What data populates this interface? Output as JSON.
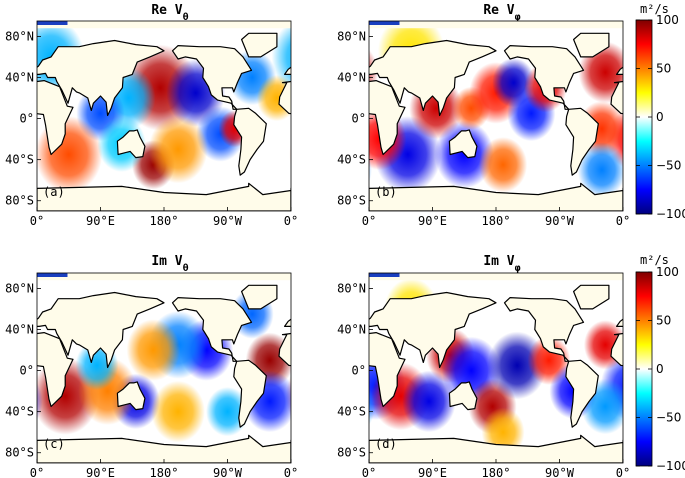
{
  "chart_data": [
    {
      "type": "heatmap",
      "panel": "a",
      "title_main": "Re V",
      "title_sub": "θ",
      "label": "(a)",
      "xticks": [
        "0°",
        "90°E",
        "180°",
        "90°W",
        "0°"
      ],
      "yticks": [
        "80°N",
        "40°N",
        "0°",
        "40°S",
        "80°S"
      ],
      "blobs": [
        {
          "lon": 175,
          "lat": 30,
          "v": 90,
          "r": 28
        },
        {
          "lon": 225,
          "lat": 25,
          "v": -85,
          "r": 22
        },
        {
          "lon": 130,
          "lat": 20,
          "v": -40,
          "r": 20
        },
        {
          "lon": 90,
          "lat": 5,
          "v": -60,
          "r": 18
        },
        {
          "lon": 45,
          "lat": -35,
          "v": 60,
          "r": 25
        },
        {
          "lon": 165,
          "lat": -45,
          "v": 95,
          "r": 16
        },
        {
          "lon": 120,
          "lat": -25,
          "v": -35,
          "r": 18
        },
        {
          "lon": 260,
          "lat": -15,
          "v": -60,
          "r": 18
        },
        {
          "lon": 280,
          "lat": -10,
          "v": 80,
          "r": 12
        },
        {
          "lon": 305,
          "lat": 40,
          "v": -50,
          "r": 18
        },
        {
          "lon": 340,
          "lat": 20,
          "v": 40,
          "r": 15
        },
        {
          "lon": 20,
          "lat": 60,
          "v": -40,
          "r": 25
        },
        {
          "lon": 200,
          "lat": -30,
          "v": 45,
          "r": 22
        }
      ]
    },
    {
      "type": "heatmap",
      "panel": "b",
      "title_main": "Re V",
      "title_sub": "φ",
      "label": "(b)",
      "xticks": [
        "0°",
        "90°E",
        "180°",
        "90°W",
        "0°"
      ],
      "yticks": [
        "80°N",
        "40°N",
        "0°",
        "40°S",
        "80°S"
      ],
      "blobs": [
        {
          "lon": 55,
          "lat": -35,
          "v": -80,
          "r": 25
        },
        {
          "lon": 15,
          "lat": -20,
          "v": 75,
          "r": 20
        },
        {
          "lon": 95,
          "lat": 10,
          "v": 85,
          "r": 20
        },
        {
          "lon": 135,
          "lat": -35,
          "v": -75,
          "r": 22
        },
        {
          "lon": 145,
          "lat": 10,
          "v": 60,
          "r": 14
        },
        {
          "lon": 180,
          "lat": 25,
          "v": 70,
          "r": 20
        },
        {
          "lon": 205,
          "lat": 35,
          "v": -85,
          "r": 16
        },
        {
          "lon": 230,
          "lat": 5,
          "v": -70,
          "r": 18
        },
        {
          "lon": 250,
          "lat": 30,
          "v": 80,
          "r": 16
        },
        {
          "lon": 335,
          "lat": 45,
          "v": 85,
          "r": 20
        },
        {
          "lon": 330,
          "lat": -10,
          "v": 65,
          "r": 18
        },
        {
          "lon": 330,
          "lat": -50,
          "v": -50,
          "r": 18
        },
        {
          "lon": 190,
          "lat": -45,
          "v": 55,
          "r": 18
        },
        {
          "lon": 60,
          "lat": 65,
          "v": 30,
          "r": 25
        }
      ]
    },
    {
      "type": "heatmap",
      "panel": "c",
      "title_main": "Im V",
      "title_sub": "θ",
      "label": "(c)",
      "xticks": [
        "0°",
        "90°E",
        "180°",
        "90°W",
        "0°"
      ],
      "yticks": [
        "80°N",
        "40°N",
        "0°",
        "40°S",
        "80°S"
      ],
      "blobs": [
        {
          "lon": 40,
          "lat": -25,
          "v": 90,
          "r": 25
        },
        {
          "lon": 330,
          "lat": 10,
          "v": 95,
          "r": 18
        },
        {
          "lon": 330,
          "lat": -30,
          "v": -70,
          "r": 20
        },
        {
          "lon": 240,
          "lat": 20,
          "v": -75,
          "r": 20
        },
        {
          "lon": 200,
          "lat": 25,
          "v": -50,
          "r": 22
        },
        {
          "lon": 165,
          "lat": 20,
          "v": 45,
          "r": 20
        },
        {
          "lon": 140,
          "lat": -30,
          "v": -80,
          "r": 18
        },
        {
          "lon": 100,
          "lat": -20,
          "v": 50,
          "r": 22
        },
        {
          "lon": 85,
          "lat": 5,
          "v": -40,
          "r": 16
        },
        {
          "lon": 270,
          "lat": -40,
          "v": -40,
          "r": 16
        },
        {
          "lon": 305,
          "lat": 55,
          "v": -55,
          "r": 16
        },
        {
          "lon": 200,
          "lat": -40,
          "v": 40,
          "r": 20
        }
      ]
    },
    {
      "type": "heatmap",
      "panel": "d",
      "title_main": "Im V",
      "title_sub": "φ",
      "label": "(d)",
      "xticks": [
        "0°",
        "90°E",
        "180°",
        "90°W",
        "0°"
      ],
      "yticks": [
        "80°N",
        "40°N",
        "0°",
        "40°S",
        "80°S"
      ],
      "blobs": [
        {
          "lon": 10,
          "lat": -15,
          "v": -70,
          "r": 22
        },
        {
          "lon": 45,
          "lat": -25,
          "v": 80,
          "r": 22
        },
        {
          "lon": 85,
          "lat": -30,
          "v": -80,
          "r": 20
        },
        {
          "lon": 115,
          "lat": 15,
          "v": 85,
          "r": 18
        },
        {
          "lon": 145,
          "lat": 0,
          "v": -75,
          "r": 22
        },
        {
          "lon": 175,
          "lat": -35,
          "v": 90,
          "r": 18
        },
        {
          "lon": 210,
          "lat": 5,
          "v": -90,
          "r": 22
        },
        {
          "lon": 255,
          "lat": 10,
          "v": 70,
          "r": 16
        },
        {
          "lon": 290,
          "lat": -20,
          "v": -75,
          "r": 18
        },
        {
          "lon": 335,
          "lat": 25,
          "v": 80,
          "r": 16
        },
        {
          "lon": 335,
          "lat": -35,
          "v": -45,
          "r": 18
        },
        {
          "lon": 190,
          "lat": -60,
          "v": 40,
          "r": 16
        },
        {
          "lon": 60,
          "lat": 60,
          "v": 30,
          "r": 20
        }
      ]
    }
  ],
  "colorbar": {
    "unit": "m²/s",
    "ticks": [
      "100",
      "50",
      "0",
      "−50",
      "−100"
    ],
    "vmin": -100,
    "vmax": 100
  }
}
